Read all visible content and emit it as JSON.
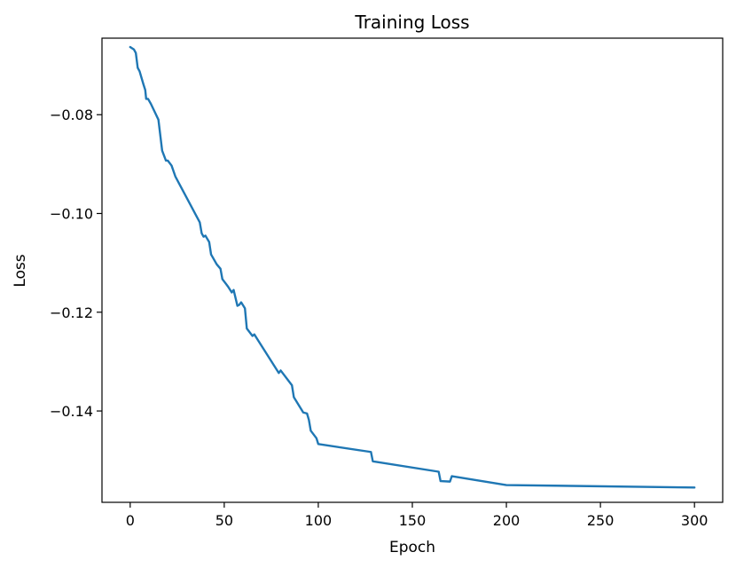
{
  "chart_data": {
    "type": "line",
    "title": "Training Loss",
    "xlabel": "Epoch",
    "ylabel": "Loss",
    "xlim": [
      -15,
      315
    ],
    "ylim": [
      -0.1585,
      -0.0645
    ],
    "xticks": [
      {
        "value": 0,
        "label": "0"
      },
      {
        "value": 50,
        "label": "50"
      },
      {
        "value": 100,
        "label": "100"
      },
      {
        "value": 150,
        "label": "150"
      },
      {
        "value": 200,
        "label": "200"
      },
      {
        "value": 250,
        "label": "250"
      },
      {
        "value": 300,
        "label": "300"
      }
    ],
    "yticks": [
      {
        "value": -0.08,
        "label": "−0.08"
      },
      {
        "value": -0.1,
        "label": "−0.10"
      },
      {
        "value": -0.12,
        "label": "−0.12"
      },
      {
        "value": -0.14,
        "label": "−0.14"
      }
    ],
    "grid": false,
    "series": [
      {
        "color": "#1f77b4",
        "points": [
          [
            0,
            -0.0663
          ],
          [
            2,
            -0.0668
          ],
          [
            3,
            -0.0675
          ],
          [
            4,
            -0.0705
          ],
          [
            5,
            -0.0712
          ],
          [
            7,
            -0.0738
          ],
          [
            8,
            -0.075
          ],
          [
            8.5,
            -0.0768
          ],
          [
            9.5,
            -0.0768
          ],
          [
            11,
            -0.0778
          ],
          [
            15,
            -0.081
          ],
          [
            17,
            -0.0873
          ],
          [
            19,
            -0.0893
          ],
          [
            20,
            -0.0893
          ],
          [
            22,
            -0.0903
          ],
          [
            24,
            -0.0925
          ],
          [
            37,
            -0.1018
          ],
          [
            38,
            -0.104
          ],
          [
            39,
            -0.1047
          ],
          [
            40,
            -0.1045
          ],
          [
            42,
            -0.1058
          ],
          [
            43,
            -0.1083
          ],
          [
            46,
            -0.1103
          ],
          [
            48,
            -0.1112
          ],
          [
            49,
            -0.1133
          ],
          [
            52,
            -0.1148
          ],
          [
            54,
            -0.116
          ],
          [
            55,
            -0.1155
          ],
          [
            57,
            -0.1187
          ],
          [
            58,
            -0.1185
          ],
          [
            59,
            -0.118
          ],
          [
            61,
            -0.1192
          ],
          [
            62,
            -0.1233
          ],
          [
            65,
            -0.1248
          ],
          [
            66,
            -0.1245
          ],
          [
            79,
            -0.1323
          ],
          [
            80,
            -0.1318
          ],
          [
            86,
            -0.1348
          ],
          [
            87,
            -0.1372
          ],
          [
            92,
            -0.1403
          ],
          [
            94,
            -0.1405
          ],
          [
            95,
            -0.1418
          ],
          [
            96,
            -0.144
          ],
          [
            99,
            -0.1455
          ],
          [
            100,
            -0.1467
          ],
          [
            128,
            -0.1483
          ],
          [
            129,
            -0.1502
          ],
          [
            164,
            -0.1523
          ],
          [
            165,
            -0.1542
          ],
          [
            170,
            -0.1543
          ],
          [
            171,
            -0.1532
          ],
          [
            200,
            -0.155
          ],
          [
            300,
            -0.1555
          ]
        ]
      }
    ]
  }
}
